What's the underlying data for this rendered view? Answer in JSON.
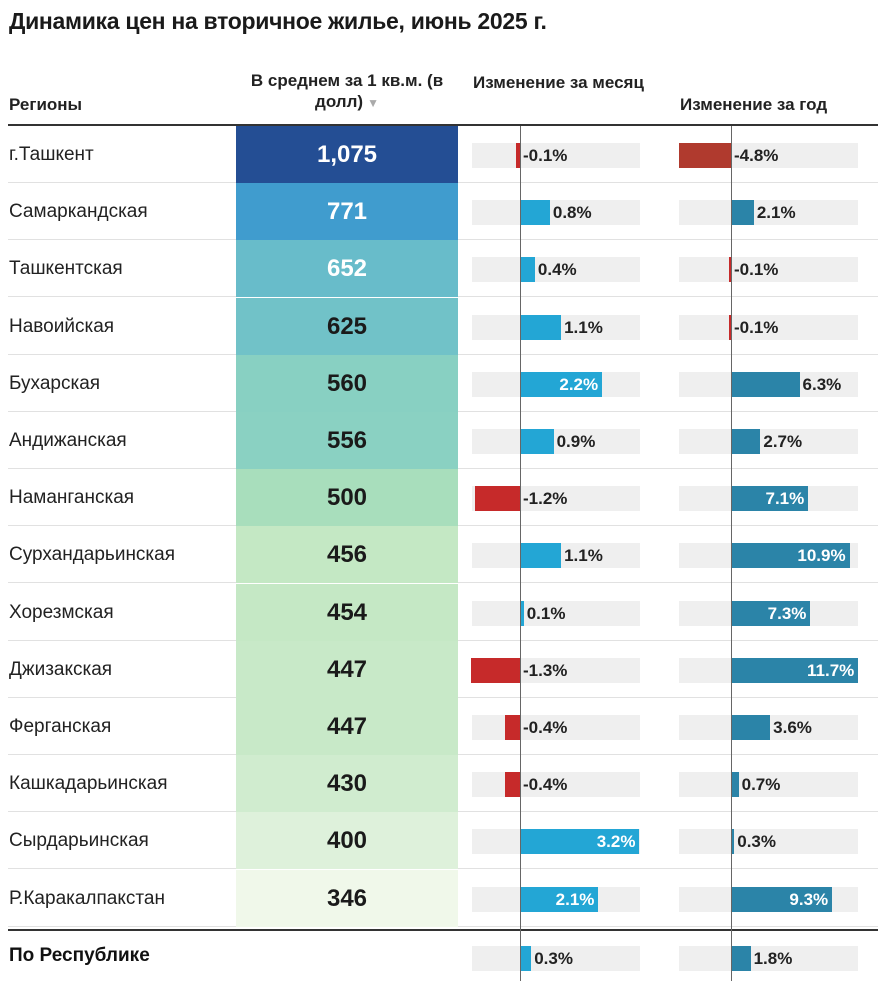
{
  "title": "Динамика цен на вторичное жилье, июнь 2025 г.",
  "headers": {
    "region": "Регионы",
    "avg": "В среднем за 1 кв.м. (в долл)",
    "month": "Изменение за месяц",
    "year": "Изменение за год"
  },
  "colors": {
    "positive_month": "#23a6d5",
    "positive_year": "#2b84a8",
    "negative": "#c62a2a",
    "negative_year_dark": "#b03a2e",
    "track": "#efefef"
  },
  "chart_data": {
    "type": "table",
    "columns": [
      "Регионы",
      "В среднем за 1 кв.м. (в долл)",
      "Изменение за месяц",
      "Изменение за год"
    ],
    "month_range": [
      -1.3,
      3.2
    ],
    "year_range": [
      -4.8,
      11.7
    ],
    "rows": [
      {
        "region": "г.Ташкент",
        "price": 1075,
        "price_label": "1,075",
        "month": -0.1,
        "month_label": "-0.1%",
        "year": -4.8,
        "year_label": "-4.8%"
      },
      {
        "region": "Самаркандская",
        "price": 771,
        "price_label": "771",
        "month": 0.8,
        "month_label": "0.8%",
        "year": 2.1,
        "year_label": "2.1%"
      },
      {
        "region": "Ташкентская",
        "price": 652,
        "price_label": "652",
        "month": 0.4,
        "month_label": "0.4%",
        "year": -0.1,
        "year_label": "-0.1%"
      },
      {
        "region": "Навоийская",
        "price": 625,
        "price_label": "625",
        "month": 1.1,
        "month_label": "1.1%",
        "year": -0.1,
        "year_label": "-0.1%"
      },
      {
        "region": "Бухарская",
        "price": 560,
        "price_label": "560",
        "month": 2.2,
        "month_label": "2.2%",
        "year": 6.3,
        "year_label": "6.3%"
      },
      {
        "region": "Андижанская",
        "price": 556,
        "price_label": "556",
        "month": 0.9,
        "month_label": "0.9%",
        "year": 2.7,
        "year_label": "2.7%"
      },
      {
        "region": "Наманганская",
        "price": 500,
        "price_label": "500",
        "month": -1.2,
        "month_label": "-1.2%",
        "year": 7.1,
        "year_label": "7.1%"
      },
      {
        "region": "Сурхандарьинская",
        "price": 456,
        "price_label": "456",
        "month": 1.1,
        "month_label": "1.1%",
        "year": 10.9,
        "year_label": "10.9%"
      },
      {
        "region": "Хорезмская",
        "price": 454,
        "price_label": "454",
        "month": 0.1,
        "month_label": "0.1%",
        "year": 7.3,
        "year_label": "7.3%"
      },
      {
        "region": "Джизакская",
        "price": 447,
        "price_label": "447",
        "month": -1.3,
        "month_label": "-1.3%",
        "year": 11.7,
        "year_label": "11.7%"
      },
      {
        "region": "Ферганская",
        "price": 447,
        "price_label": "447",
        "month": -0.4,
        "month_label": "-0.4%",
        "year": 3.6,
        "year_label": "3.6%"
      },
      {
        "region": "Кашкадарьинская",
        "price": 430,
        "price_label": "430",
        "month": -0.4,
        "month_label": "-0.4%",
        "year": 0.7,
        "year_label": "0.7%"
      },
      {
        "region": "Сырдарьинская",
        "price": 400,
        "price_label": "400",
        "month": 3.2,
        "month_label": "3.2%",
        "year": 0.3,
        "year_label": "0.3%"
      },
      {
        "region": "Р.Каракалпакстан",
        "price": 346,
        "price_label": "346",
        "month": 2.1,
        "month_label": "2.1%",
        "year": 9.3,
        "year_label": "9.3%"
      }
    ],
    "total": {
      "region": "По Республике",
      "month": 0.3,
      "month_label": "0.3%",
      "year": 1.8,
      "year_label": "1.8%"
    }
  }
}
